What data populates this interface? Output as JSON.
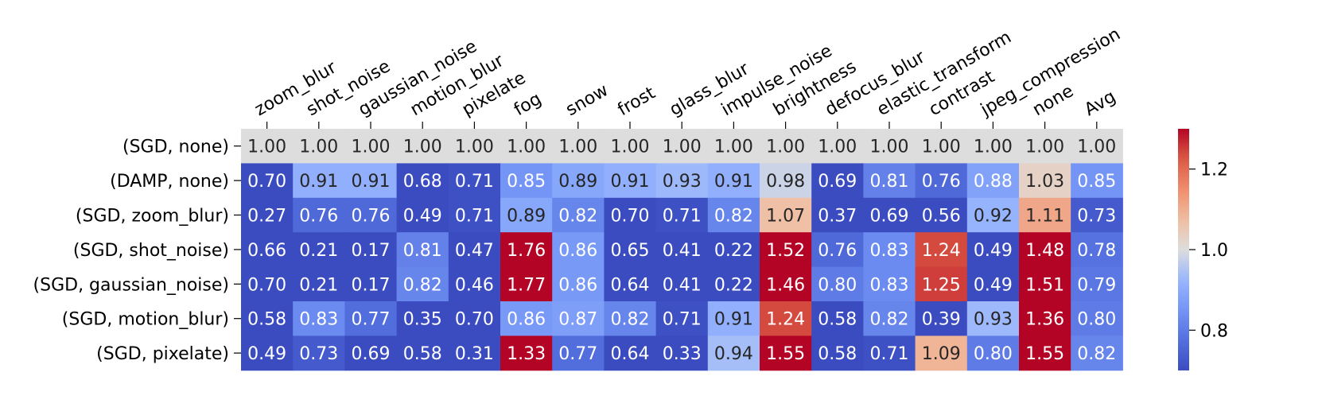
{
  "chart_data": {
    "type": "heatmap",
    "title": "",
    "xlabel": "",
    "ylabel": "",
    "columns": [
      "zoom_blur",
      "shot_noise",
      "gaussian_noise",
      "motion_blur",
      "pixelate",
      "fog",
      "snow",
      "frost",
      "glass_blur",
      "impulse_noise",
      "brightness",
      "defocus_blur",
      "elastic_transform",
      "contrast",
      "jpeg_compression",
      "none",
      "Avg"
    ],
    "rows": [
      "(SGD, none)",
      "(DAMP, none)",
      "(SGD, zoom_blur)",
      "(SGD, shot_noise)",
      "(SGD, gaussian_noise)",
      "(SGD, motion_blur)",
      "(SGD, pixelate)"
    ],
    "values": [
      [
        1.0,
        1.0,
        1.0,
        1.0,
        1.0,
        1.0,
        1.0,
        1.0,
        1.0,
        1.0,
        1.0,
        1.0,
        1.0,
        1.0,
        1.0,
        1.0,
        1.0
      ],
      [
        0.7,
        0.91,
        0.91,
        0.68,
        0.71,
        0.85,
        0.89,
        0.91,
        0.93,
        0.91,
        0.98,
        0.69,
        0.81,
        0.76,
        0.88,
        1.03,
        0.85
      ],
      [
        0.27,
        0.76,
        0.76,
        0.49,
        0.71,
        0.89,
        0.82,
        0.7,
        0.71,
        0.82,
        1.07,
        0.37,
        0.69,
        0.56,
        0.92,
        1.11,
        0.73
      ],
      [
        0.66,
        0.21,
        0.17,
        0.81,
        0.47,
        1.76,
        0.86,
        0.65,
        0.41,
        0.22,
        1.52,
        0.76,
        0.83,
        1.24,
        0.49,
        1.48,
        0.78
      ],
      [
        0.7,
        0.21,
        0.17,
        0.82,
        0.46,
        1.77,
        0.86,
        0.64,
        0.41,
        0.22,
        1.46,
        0.8,
        0.83,
        1.25,
        0.49,
        1.51,
        0.79
      ],
      [
        0.58,
        0.83,
        0.77,
        0.35,
        0.7,
        0.86,
        0.87,
        0.82,
        0.71,
        0.91,
        1.24,
        0.58,
        0.82,
        0.39,
        0.93,
        1.36,
        0.8
      ],
      [
        0.49,
        0.73,
        0.69,
        0.58,
        0.31,
        1.33,
        0.77,
        0.64,
        0.33,
        0.94,
        1.55,
        0.58,
        0.71,
        1.09,
        0.8,
        1.55,
        0.82
      ]
    ],
    "colormap": "coolwarm",
    "vmin": 0.7,
    "vmax": 1.3,
    "colorbar": {
      "ticks": [
        0.8,
        1.0,
        1.2
      ],
      "tick_labels": [
        "0.8",
        "1.0",
        "1.2"
      ],
      "position": "right"
    }
  }
}
